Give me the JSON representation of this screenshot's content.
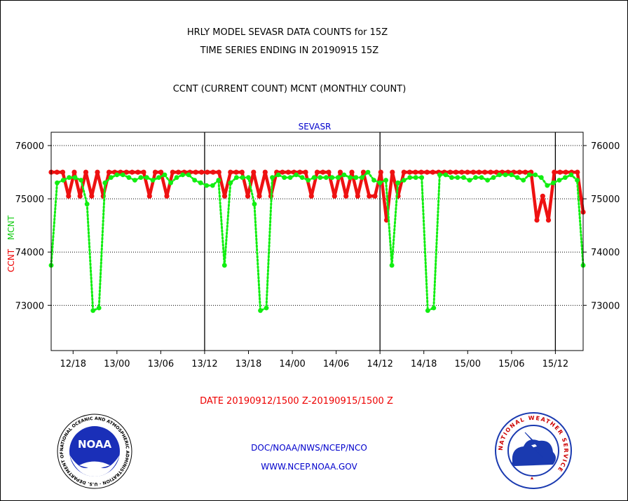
{
  "header": {
    "line1": "HRLY MODEL SEVASR DATA COUNTS for 15Z",
    "line2": "TIME SERIES ENDING IN 20190915 15Z",
    "legend": "CCNT (CURRENT COUNT) MCNT (MONTHLY COUNT)"
  },
  "footer": {
    "date_range": "DATE 20190912/1500 Z-20190915/1500 Z",
    "org": "DOC/NOAA/NWS/NCEP/NCO",
    "url": "WWW.NCEP.NOAA.GOV"
  },
  "logos": {
    "noaa": "NOAA",
    "nws": "NATIONAL WEATHER SERVICE",
    "noaa_ring": "NATIONAL OCEANIC AND ATMOSPHERIC ADMINISTRATION · U.S. DEPARTMENT OF COMMERCE"
  },
  "colors": {
    "ccnt": "#ee0000",
    "mcnt": "#11ee11",
    "title_blue": "#0000cc"
  },
  "chart_data": {
    "type": "line",
    "title": "SEVASR",
    "ylabel_ccnt": "CCNT",
    "ylabel_mcnt": "MCNT",
    "ylim": [
      72150,
      76250
    ],
    "yticks": [
      73000,
      74000,
      75000,
      76000
    ],
    "ytick_labels": [
      "73000",
      "74000",
      "75000",
      "76000"
    ],
    "xlim": [
      15,
      87.8
    ],
    "xticks": [
      18,
      24,
      30,
      36,
      42,
      48,
      54,
      60,
      66,
      72,
      78,
      84
    ],
    "xtick_labels": [
      "12/18",
      "13/00",
      "13/06",
      "13/12",
      "13/18",
      "14/00",
      "14/06",
      "14/12",
      "14/18",
      "15/00",
      "15/06",
      "15/12"
    ],
    "day_boundaries": [
      36,
      60,
      84
    ],
    "grid": true,
    "series": [
      {
        "name": "CCNT",
        "values": [
          75500,
          75500,
          75500,
          75050,
          75500,
          75050,
          75500,
          75050,
          75500,
          75050,
          75500,
          75500,
          75500,
          75500,
          75500,
          75500,
          75500,
          75050,
          75500,
          75500,
          75050,
          75500,
          75500,
          75500,
          75500,
          75500,
          75500,
          75500,
          75500,
          75500,
          75050,
          75500,
          75500,
          75500,
          75050,
          75500,
          75050,
          75500,
          75050,
          75500,
          75500,
          75500,
          75500,
          75500,
          75500,
          75050,
          75500,
          75500,
          75500,
          75050,
          75500,
          75050,
          75500,
          75050,
          75500,
          75050,
          75050,
          75500,
          74600,
          75500,
          75050,
          75500,
          75500,
          75500,
          75500,
          75500,
          75500,
          75500,
          75500,
          75500,
          75500,
          75500,
          75500,
          75500,
          75500,
          75500,
          75500,
          75500,
          75500,
          75500,
          75500,
          75500,
          75500,
          75500,
          74600,
          75050,
          74600,
          75500,
          75500,
          75500,
          75500,
          75500,
          74750
        ]
      },
      {
        "name": "MCNT",
        "values": [
          73750,
          75300,
          75350,
          75400,
          75400,
          75350,
          74900,
          72900,
          72950,
          75300,
          75400,
          75450,
          75450,
          75400,
          75350,
          75400,
          75400,
          75350,
          75400,
          75450,
          75300,
          75400,
          75450,
          75450,
          75350,
          75300,
          75250,
          75250,
          75350,
          73750,
          75300,
          75400,
          75400,
          75400,
          74900,
          72900,
          72950,
          75400,
          75450,
          75400,
          75400,
          75450,
          75400,
          75350,
          75400,
          75400,
          75400,
          75400,
          75400,
          75450,
          75400,
          75400,
          75400,
          75500,
          75350,
          75300,
          75350,
          73750,
          75300,
          75350,
          75400,
          75400,
          75400,
          72900,
          72950,
          75450,
          75450,
          75400,
          75400,
          75400,
          75350,
          75400,
          75400,
          75350,
          75400,
          75450,
          75450,
          75450,
          75400,
          75350,
          75450,
          75450,
          75400,
          75250,
          75300,
          75350,
          75400,
          75450,
          75350,
          73750
        ]
      }
    ]
  }
}
